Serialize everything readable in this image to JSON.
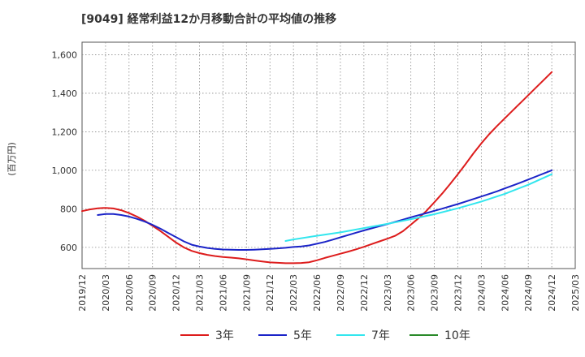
{
  "chart_data": {
    "type": "line",
    "title": "[9049]  経常利益12か月移動合計の平均値の推移",
    "ylabel": "(百万円)",
    "xlabel": "",
    "ylim": [
      490,
      1665
    ],
    "yticks": [
      600,
      800,
      1000,
      1200,
      1400,
      1600
    ],
    "ytick_labels": [
      "600",
      "800",
      "1,000",
      "1,200",
      "1,400",
      "1,600"
    ],
    "xticks": [
      "2019/12",
      "2020/03",
      "2020/06",
      "2020/09",
      "2020/12",
      "2021/03",
      "2021/06",
      "2021/09",
      "2021/12",
      "2022/03",
      "2022/06",
      "2022/09",
      "2022/12",
      "2023/03",
      "2023/06",
      "2023/09",
      "2023/12",
      "2024/03",
      "2024/06",
      "2024/09",
      "2024/12",
      "2025/03"
    ],
    "grid": true,
    "legend_position": "bottom",
    "series": [
      {
        "name": "3年",
        "color": "#dd1c1c",
        "x": [
          "2019/12",
          "2020/01",
          "2020/02",
          "2020/03",
          "2020/04",
          "2020/05",
          "2020/06",
          "2020/07",
          "2020/08",
          "2020/09",
          "2020/10",
          "2020/11",
          "2020/12",
          "2021/01",
          "2021/02",
          "2021/03",
          "2021/04",
          "2021/05",
          "2021/06",
          "2021/07",
          "2021/08",
          "2021/09",
          "2021/10",
          "2021/11",
          "2021/12",
          "2022/01",
          "2022/02",
          "2022/03",
          "2022/04",
          "2022/05",
          "2022/06",
          "2022/07",
          "2022/08",
          "2022/09",
          "2022/10",
          "2022/11",
          "2022/12",
          "2023/01",
          "2023/02",
          "2023/03",
          "2023/04",
          "2023/05",
          "2023/06",
          "2023/07",
          "2023/08",
          "2023/09",
          "2023/10",
          "2023/11",
          "2023/12",
          "2024/01",
          "2024/02",
          "2024/03",
          "2024/04",
          "2024/05",
          "2024/06",
          "2024/07",
          "2024/08",
          "2024/09",
          "2024/10",
          "2024/11",
          "2024/12"
        ],
        "values": [
          788,
          797,
          803,
          805,
          802,
          793,
          778,
          760,
          738,
          712,
          685,
          655,
          625,
          600,
          582,
          570,
          561,
          555,
          550,
          547,
          543,
          538,
          532,
          527,
          522,
          520,
          518,
          518,
          519,
          523,
          533,
          545,
          556,
          567,
          578,
          590,
          603,
          617,
          631,
          645,
          660,
          684,
          718,
          752,
          790,
          834,
          879,
          928,
          980,
          1033,
          1088,
          1140,
          1187,
          1230,
          1270,
          1310,
          1350,
          1390,
          1430,
          1470,
          1510
        ]
      },
      {
        "name": "5年",
        "color": "#1b24c8",
        "x": [
          "2020/02",
          "2020/03",
          "2020/04",
          "2020/05",
          "2020/06",
          "2020/07",
          "2020/08",
          "2020/09",
          "2020/10",
          "2020/11",
          "2020/12",
          "2021/01",
          "2021/02",
          "2021/03",
          "2021/04",
          "2021/05",
          "2021/06",
          "2021/07",
          "2021/08",
          "2021/09",
          "2021/10",
          "2021/11",
          "2021/12",
          "2022/01",
          "2022/02",
          "2022/03",
          "2022/04",
          "2022/05",
          "2022/06",
          "2022/07",
          "2022/08",
          "2022/09",
          "2022/10",
          "2022/11",
          "2022/12",
          "2023/01",
          "2023/02",
          "2023/03",
          "2023/04",
          "2023/05",
          "2023/06",
          "2023/07",
          "2023/08",
          "2023/09",
          "2023/10",
          "2023/11",
          "2023/12",
          "2024/01",
          "2024/02",
          "2024/03",
          "2024/04",
          "2024/05",
          "2024/06",
          "2024/07",
          "2024/08",
          "2024/09",
          "2024/10",
          "2024/11",
          "2024/12"
        ],
        "values": [
          768,
          773,
          773,
          768,
          760,
          748,
          734,
          717,
          697,
          675,
          653,
          631,
          614,
          604,
          597,
          592,
          589,
          588,
          587,
          587,
          588,
          590,
          592,
          595,
          598,
          602,
          605,
          610,
          619,
          628,
          640,
          652,
          664,
          676,
          688,
          699,
          710,
          721,
          732,
          744,
          756,
          767,
          778,
          790,
          801,
          813,
          825,
          838,
          851,
          864,
          877,
          891,
          906,
          921,
          936,
          952,
          968,
          984,
          1000
        ]
      },
      {
        "name": "7年",
        "color": "#33e6ee",
        "x": [
          "2022/02",
          "2022/03",
          "2022/06",
          "2022/09",
          "2022/12",
          "2023/03",
          "2023/06",
          "2023/09",
          "2023/12",
          "2024/03",
          "2024/06",
          "2024/09",
          "2024/12"
        ],
        "values": [
          633,
          641,
          660,
          678,
          700,
          722,
          746,
          772,
          803,
          838,
          878,
          925,
          980
        ]
      },
      {
        "name": "10年",
        "color": "#2a8a2a",
        "x": [],
        "values": []
      }
    ]
  }
}
